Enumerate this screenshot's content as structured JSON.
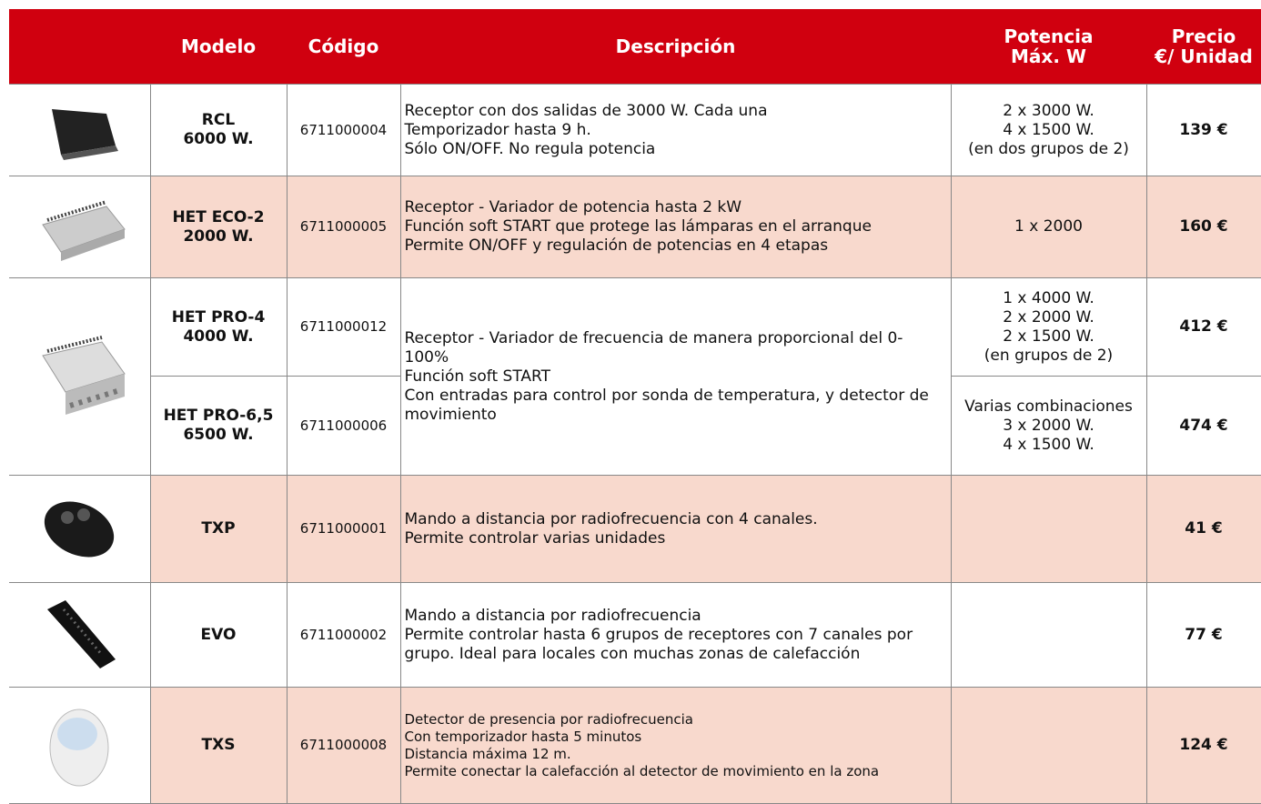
{
  "header": {
    "columns": [
      "Modelo",
      "Código",
      "Descripción",
      [
        "Potencia",
        "Máx. W"
      ],
      [
        "Precio",
        "€/ Unidad"
      ]
    ]
  },
  "rows": [
    {
      "model": [
        "RCL",
        "6000 W."
      ],
      "code": "6711000004",
      "description": [
        "Receptor con dos salidas de 3000 W. Cada una",
        "Temporizador hasta 9 h.",
        "Sólo ON/OFF. No regula potencia"
      ],
      "power": [
        "2 x 3000 W.",
        "4 x 1500 W.",
        "(en dos grupos de 2)"
      ],
      "price": "139 €"
    },
    {
      "model": [
        "HET ECO-2",
        "2000 W."
      ],
      "code": "6711000005",
      "description": [
        "Receptor - Variador de potencia hasta 2 kW",
        "Función soft START que protege las lámparas en el arranque",
        "Permite ON/OFF y regulación de potencias en 4 etapas"
      ],
      "power": [
        "1 x 2000"
      ],
      "price": "160 €"
    },
    {
      "model": [
        "HET PRO-4",
        "4000 W."
      ],
      "code": "6711000012",
      "description": [
        "Receptor - Variador de frecuencia de manera proporcional del 0-100%",
        "Función soft START",
        "Con entradas para control por sonda de temperatura, y detector de movimiento"
      ],
      "power": [
        "1 x 4000 W.",
        "2 x 2000 W.",
        "2 x 1500 W.",
        "(en grupos de 2)"
      ],
      "price": "412 €"
    },
    {
      "model": [
        "HET PRO-6,5",
        "6500 W."
      ],
      "code": "6711000006",
      "power": [
        "Varias combinaciones",
        "3 x 2000 W.",
        "4 x 1500 W."
      ],
      "price": "474 €"
    },
    {
      "model": [
        "TXP"
      ],
      "code": "6711000001",
      "description": [
        "Mando a distancia por radiofrecuencia con 4 canales.",
        "Permite controlar varias unidades"
      ],
      "price": "41 €"
    },
    {
      "model": [
        "EVO"
      ],
      "code": "6711000002",
      "description": [
        "Mando a distancia por radiofrecuencia",
        "Permite controlar hasta 6 grupos de receptores con 7 canales por grupo. Ideal para locales con muchas zonas de calefacción"
      ],
      "price": "77 €"
    },
    {
      "model": [
        "TXS"
      ],
      "code": "6711000008",
      "description": [
        "Detector de presencia por radiofrecuencia",
        "Con temporizador hasta 5 minutos",
        "Distancia máxima 12 m.",
        "Permite conectar la calefacción al detector de movimiento en la zona"
      ],
      "price": "124 €"
    }
  ]
}
